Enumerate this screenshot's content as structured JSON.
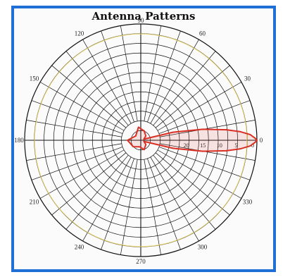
{
  "chart_data": {
    "type": "polar",
    "title": "Antenna Patterns",
    "angle_labels": [
      "0",
      "30",
      "60",
      "90",
      "120",
      "150",
      "180",
      "210",
      "240",
      "270",
      "300",
      "330"
    ],
    "angle_label_degrees": [
      0,
      30,
      60,
      90,
      120,
      150,
      180,
      210,
      240,
      270,
      300,
      330
    ],
    "radial_labels": [
      "20",
      "15",
      "10",
      "5",
      "0"
    ],
    "radial_values_db": [
      -20,
      -15,
      -10,
      -5,
      0
    ],
    "rlim_db": [
      -35,
      0
    ],
    "grid": true,
    "series": [
      {
        "color": "#d93025",
        "theta_deg": [
          -20,
          -14,
          -10,
          -7,
          -5,
          -3,
          -1,
          0,
          1,
          3,
          5,
          7,
          10,
          14,
          20,
          40,
          70,
          100,
          140,
          180,
          220,
          260,
          290,
          320,
          340
        ],
        "r_db": [
          -34,
          -25,
          -16,
          -9,
          -5,
          -2,
          -0.5,
          0,
          -0.5,
          -2,
          -5,
          -9,
          -16,
          -25,
          -34,
          -33,
          -32,
          -31,
          -33,
          -31,
          -32,
          -33,
          -32,
          -33,
          -34
        ]
      }
    ],
    "reference_circle": {
      "color": "#e8d36a",
      "r_db": -3
    }
  }
}
